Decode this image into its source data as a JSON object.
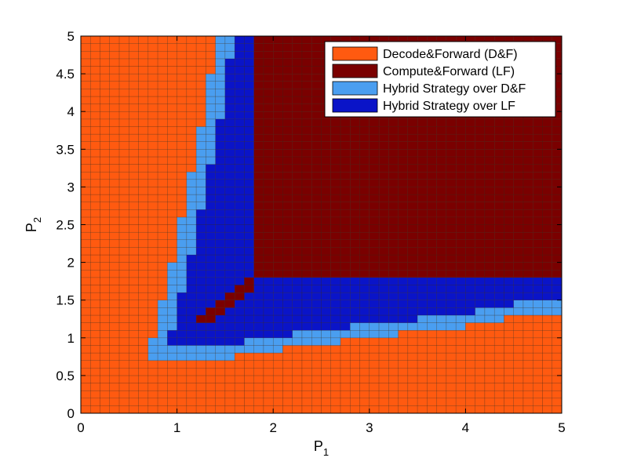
{
  "chart_data": {
    "type": "heatmap",
    "title": "",
    "xlabel": "P",
    "xlabel_sub": "1",
    "ylabel": "P",
    "ylabel_sub": "2",
    "xlim": [
      0,
      5
    ],
    "ylim": [
      0,
      5
    ],
    "x_ticks": [
      "0",
      "1",
      "2",
      "3",
      "4",
      "5"
    ],
    "y_ticks": [
      "0",
      "0.5",
      "1",
      "1.5",
      "2",
      "2.5",
      "3",
      "3.5",
      "4",
      "4.5",
      "5"
    ],
    "grid_step": 0.1,
    "legend_position": "top-right",
    "legend": [
      {
        "key": "DF",
        "label": "Decode&Forward (D&F)",
        "color": "#ff5a10"
      },
      {
        "key": "LF",
        "label": "Compute&Forward (LF)",
        "color": "#7a0000"
      },
      {
        "key": "HDF",
        "label": "Hybrid Strategy over D&F",
        "color": "#4a9ef0"
      },
      {
        "key": "HLF",
        "label": "Hybrid Strategy over LF",
        "color": "#0a14c8"
      }
    ],
    "regions": {
      "LF_min_p1": 1.8,
      "LF_min_p2": 1.8,
      "DF_left_boundary_p1_by_p2": [
        [
          0.7,
          1.2
        ],
        [
          1.2,
          0.82
        ],
        [
          1.75,
          0.88
        ],
        [
          2.5,
          1.0
        ],
        [
          3.5,
          1.12
        ],
        [
          4.5,
          1.21
        ],
        [
          5.0,
          1.28
        ]
      ],
      "DF_bottom_boundary_p2_by_p1": [
        [
          0.7,
          0.7
        ],
        [
          1.4,
          0.72
        ],
        [
          2.0,
          0.84
        ],
        [
          3.0,
          1.0
        ],
        [
          4.0,
          1.15
        ],
        [
          4.5,
          1.28
        ],
        [
          5.0,
          1.28
        ]
      ],
      "HDF_band_width": 0.18,
      "HLF_diagonal_points": [
        [
          1.3,
          1.25
        ],
        [
          1.4,
          1.35
        ],
        [
          1.5,
          1.45
        ],
        [
          1.6,
          1.55
        ],
        [
          1.7,
          1.65
        ],
        [
          1.75,
          1.75
        ]
      ]
    }
  }
}
